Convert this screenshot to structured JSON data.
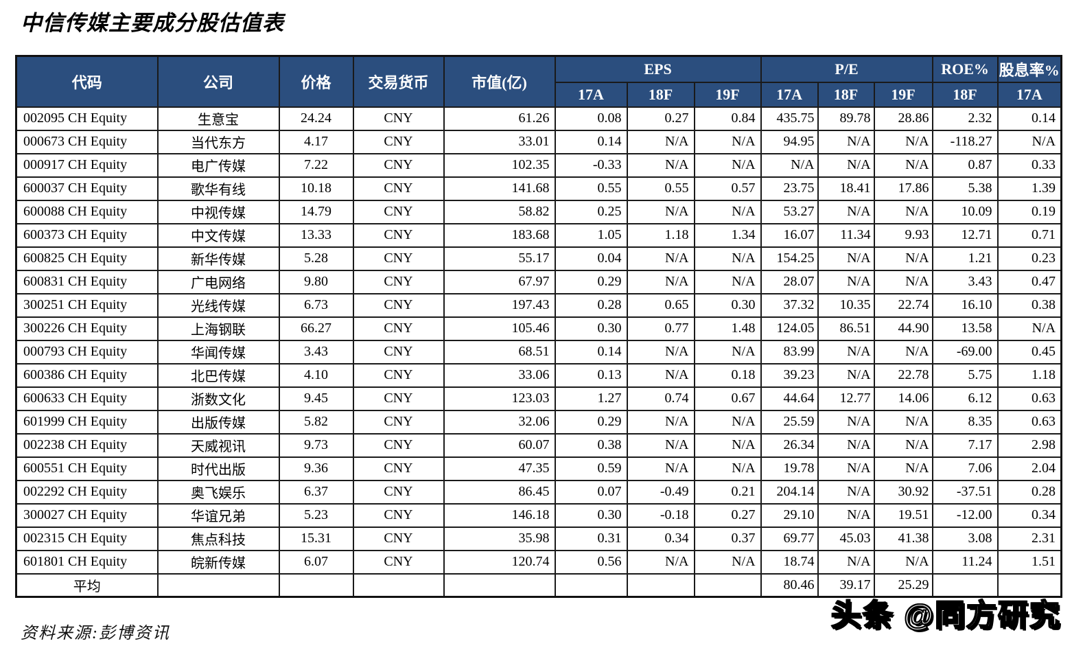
{
  "title": "中信传媒主要成分股估值表",
  "source_note": "资料来源:彭博资讯",
  "watermark": "头条 @同方研究",
  "colors": {
    "header_bg": "#2b4e7e",
    "header_text": "#ffffff",
    "border": "#1a1a1a",
    "body_bg": "#ffffff"
  },
  "table": {
    "headers": {
      "code": "代码",
      "company": "公司",
      "price": "价格",
      "currency": "交易货币",
      "market_cap": "市值(亿)",
      "eps_group": "EPS",
      "pe_group": "P/E",
      "roe_group": "ROE%",
      "dividend_group": "股息率%",
      "eps_sub": [
        "17A",
        "18F",
        "19F"
      ],
      "pe_sub": [
        "17A",
        "18F",
        "19F"
      ],
      "roe_sub": "18F",
      "dividend_sub": "17A"
    },
    "column_names": [
      "stock-code",
      "company-name",
      "price",
      "currency",
      "market-cap",
      "eps-17a",
      "eps-18f",
      "eps-19f",
      "pe-17a",
      "pe-18f",
      "pe-19f",
      "roe-18f",
      "dividend-yield-17a"
    ],
    "rows": [
      [
        "002095 CH Equity",
        "生意宝",
        "24.24",
        "CNY",
        "61.26",
        "0.08",
        "0.27",
        "0.84",
        "435.75",
        "89.78",
        "28.86",
        "2.32",
        "0.14"
      ],
      [
        "000673 CH Equity",
        "当代东方",
        "4.17",
        "CNY",
        "33.01",
        "0.14",
        "N/A",
        "N/A",
        "94.95",
        "N/A",
        "N/A",
        "-118.27",
        "N/A"
      ],
      [
        "000917 CH Equity",
        "电广传媒",
        "7.22",
        "CNY",
        "102.35",
        "-0.33",
        "N/A",
        "N/A",
        "N/A",
        "N/A",
        "N/A",
        "0.87",
        "0.33"
      ],
      [
        "600037 CH Equity",
        "歌华有线",
        "10.18",
        "CNY",
        "141.68",
        "0.55",
        "0.55",
        "0.57",
        "23.75",
        "18.41",
        "17.86",
        "5.38",
        "1.39"
      ],
      [
        "600088 CH Equity",
        "中视传媒",
        "14.79",
        "CNY",
        "58.82",
        "0.25",
        "N/A",
        "N/A",
        "53.27",
        "N/A",
        "N/A",
        "10.09",
        "0.19"
      ],
      [
        "600373 CH Equity",
        "中文传媒",
        "13.33",
        "CNY",
        "183.68",
        "1.05",
        "1.18",
        "1.34",
        "16.07",
        "11.34",
        "9.93",
        "12.71",
        "0.71"
      ],
      [
        "600825 CH Equity",
        "新华传媒",
        "5.28",
        "CNY",
        "55.17",
        "0.04",
        "N/A",
        "N/A",
        "154.25",
        "N/A",
        "N/A",
        "1.21",
        "0.23"
      ],
      [
        "600831 CH Equity",
        "广电网络",
        "9.80",
        "CNY",
        "67.97",
        "0.29",
        "N/A",
        "N/A",
        "28.07",
        "N/A",
        "N/A",
        "3.43",
        "0.47"
      ],
      [
        "300251 CH Equity",
        "光线传媒",
        "6.73",
        "CNY",
        "197.43",
        "0.28",
        "0.65",
        "0.30",
        "37.32",
        "10.35",
        "22.74",
        "16.10",
        "0.38"
      ],
      [
        "300226 CH Equity",
        "上海钢联",
        "66.27",
        "CNY",
        "105.46",
        "0.30",
        "0.77",
        "1.48",
        "124.05",
        "86.51",
        "44.90",
        "13.58",
        "N/A"
      ],
      [
        "000793 CH Equity",
        "华闻传媒",
        "3.43",
        "CNY",
        "68.51",
        "0.14",
        "N/A",
        "N/A",
        "83.99",
        "N/A",
        "N/A",
        "-69.00",
        "0.45"
      ],
      [
        "600386 CH Equity",
        "北巴传媒",
        "4.10",
        "CNY",
        "33.06",
        "0.13",
        "N/A",
        "0.18",
        "39.23",
        "N/A",
        "22.78",
        "5.75",
        "1.18"
      ],
      [
        "600633 CH Equity",
        "浙数文化",
        "9.45",
        "CNY",
        "123.03",
        "1.27",
        "0.74",
        "0.67",
        "44.64",
        "12.77",
        "14.06",
        "6.12",
        "0.63"
      ],
      [
        "601999 CH Equity",
        "出版传媒",
        "5.82",
        "CNY",
        "32.06",
        "0.29",
        "N/A",
        "N/A",
        "25.59",
        "N/A",
        "N/A",
        "8.35",
        "0.63"
      ],
      [
        "002238 CH Equity",
        "天威视讯",
        "9.73",
        "CNY",
        "60.07",
        "0.38",
        "N/A",
        "N/A",
        "26.34",
        "N/A",
        "N/A",
        "7.17",
        "2.98"
      ],
      [
        "600551 CH Equity",
        "时代出版",
        "9.36",
        "CNY",
        "47.35",
        "0.59",
        "N/A",
        "N/A",
        "19.78",
        "N/A",
        "N/A",
        "7.06",
        "2.04"
      ],
      [
        "002292 CH Equity",
        "奥飞娱乐",
        "6.37",
        "CNY",
        "86.45",
        "0.07",
        "-0.49",
        "0.21",
        "204.14",
        "N/A",
        "30.92",
        "-37.51",
        "0.28"
      ],
      [
        "300027 CH Equity",
        "华谊兄弟",
        "5.23",
        "CNY",
        "146.18",
        "0.30",
        "-0.18",
        "0.27",
        "29.10",
        "N/A",
        "19.51",
        "-12.00",
        "0.34"
      ],
      [
        "002315 CH Equity",
        "焦点科技",
        "15.31",
        "CNY",
        "35.98",
        "0.31",
        "0.34",
        "0.37",
        "69.77",
        "45.03",
        "41.38",
        "3.08",
        "2.31"
      ],
      [
        "601801 CH Equity",
        "皖新传媒",
        "6.07",
        "CNY",
        "120.74",
        "0.56",
        "N/A",
        "N/A",
        "18.74",
        "N/A",
        "N/A",
        "11.24",
        "1.51"
      ]
    ],
    "average_row": [
      "平均",
      "",
      "",
      "",
      "",
      "",
      "",
      "",
      "80.46",
      "39.17",
      "25.29",
      "",
      ""
    ]
  }
}
